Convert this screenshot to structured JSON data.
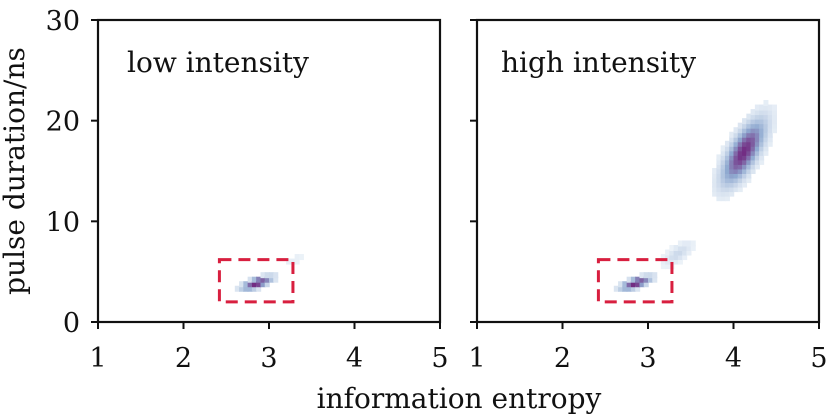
{
  "chart_data": {
    "type": "heatmap",
    "xlabel": "information entropy",
    "ylabel": "pulse duration/ns",
    "xlim": [
      1,
      5
    ],
    "ylim": [
      0,
      30
    ],
    "x_ticks": [
      "1",
      "2",
      "3",
      "4",
      "5"
    ],
    "y_ticks": [
      "0",
      "10",
      "20",
      "30"
    ],
    "shared_y_axis": true,
    "grid": false,
    "legend": "none",
    "colormap": {
      "low": "#f2f7fb",
      "mid": "#8fa9d0",
      "high": "#6f1f7a"
    },
    "highlight_region": {
      "x_range": [
        2.42,
        3.28
      ],
      "y_range": [
        2.0,
        6.2
      ],
      "color": "#d81f3f",
      "style": "dashed"
    },
    "panels": [
      {
        "title": "low intensity",
        "clusters": [
          {
            "center": [
              2.86,
              3.95
            ],
            "x_range": [
              2.45,
              3.25
            ],
            "y_range": [
              2.3,
              5.8
            ],
            "trend": "positive",
            "peak": 1.0
          },
          {
            "center": [
              3.28,
              6.2
            ],
            "x_range": [
              3.05,
              3.65
            ],
            "y_range": [
              5.0,
              8.0
            ],
            "trend": "positive",
            "peak": 0.06
          }
        ]
      },
      {
        "title": "high intensity",
        "clusters": [
          {
            "center": [
              2.86,
              3.95
            ],
            "x_range": [
              2.45,
              3.25
            ],
            "y_range": [
              2.3,
              5.8
            ],
            "trend": "positive",
            "peak": 1.0
          },
          {
            "center": [
              3.35,
              6.9
            ],
            "x_range": [
              3.05,
              3.8
            ],
            "y_range": [
              5.5,
              11.5
            ],
            "trend": "positive",
            "peak": 0.18
          },
          {
            "center": [
              4.12,
              17.0
            ],
            "x_range": [
              3.55,
              4.7
            ],
            "y_range": [
              9.0,
              26.0
            ],
            "trend": "positive",
            "peak": 0.95
          }
        ]
      }
    ]
  }
}
